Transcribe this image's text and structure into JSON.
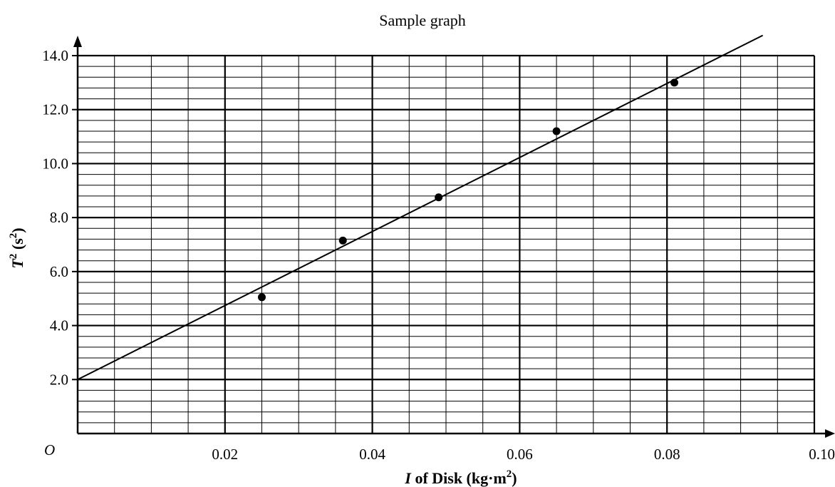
{
  "chart_data": {
    "type": "scatter",
    "title": "Sample graph",
    "xlabel": {
      "symbol": "I",
      "text": " of Disk (kg·m",
      "sup": "2",
      "close": ")"
    },
    "ylabel": {
      "symbol": "T",
      "sup1": "2",
      "text": " (s",
      "sup2": "2",
      "close": ")"
    },
    "origin_label": "O",
    "xlim": [
      0,
      0.1
    ],
    "ylim": [
      0,
      14.0
    ],
    "x_ticks": [
      {
        "value": 0.02,
        "label": "0.02"
      },
      {
        "value": 0.04,
        "label": "0.04"
      },
      {
        "value": 0.06,
        "label": "0.06"
      },
      {
        "value": 0.08,
        "label": "0.08"
      },
      {
        "value": 0.1,
        "label": "0.10"
      }
    ],
    "y_ticks": [
      {
        "value": 2.0,
        "label": "2.0"
      },
      {
        "value": 4.0,
        "label": "4.0"
      },
      {
        "value": 6.0,
        "label": "6.0"
      },
      {
        "value": 8.0,
        "label": "8.0"
      },
      {
        "value": 10.0,
        "label": "10.0"
      },
      {
        "value": 12.0,
        "label": "12.0"
      },
      {
        "value": 14.0,
        "label": "14.0"
      }
    ],
    "points": [
      {
        "x": 0.025,
        "y": 5.05
      },
      {
        "x": 0.036,
        "y": 7.15
      },
      {
        "x": 0.049,
        "y": 8.75
      },
      {
        "x": 0.065,
        "y": 11.2
      },
      {
        "x": 0.081,
        "y": 13.0
      }
    ],
    "fit_line": {
      "x": [
        0,
        0.093
      ],
      "y": [
        2.0,
        14.75
      ]
    },
    "grid": {
      "minor_x_step": 0.005,
      "major_x_step": 0.02,
      "minor_y_step": 0.4,
      "major_y_step": 2.0
    }
  }
}
